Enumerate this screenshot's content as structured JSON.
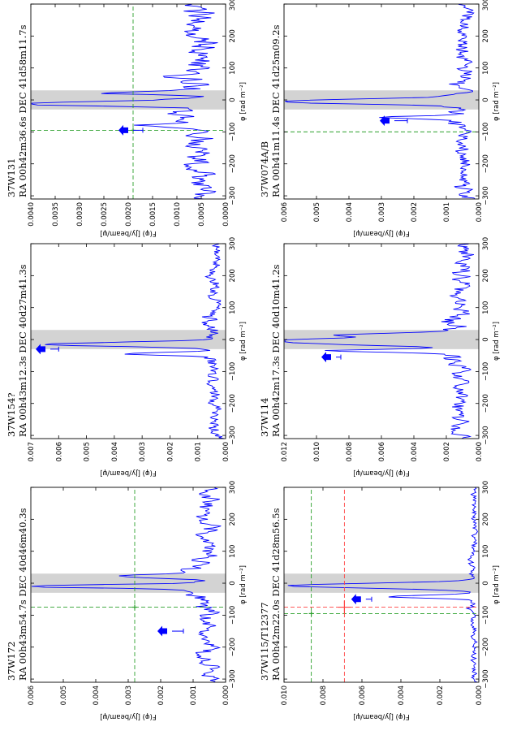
{
  "page": {
    "orientation": "rotated 90 degrees counter-clockwise",
    "layout": "3 columns x 2 rows of Faraday depth spectra"
  },
  "colors": {
    "spectrum": "#0000ff",
    "marker": "#0000ff",
    "green_line": "#2ca02c",
    "red_line": "#ff4444",
    "shade": "#d3d3d3"
  },
  "chart_data": [
    {
      "id": "37W172",
      "type": "line",
      "title": "37W172",
      "subtitle": "RA  00h43m54.7s  DEC  40d46m40.3s",
      "xlabel": "φ  [rad m⁻²]",
      "ylabel": "F(φ)  [Jy/beam/ψ]",
      "xlim": [
        -310,
        300
      ],
      "ylim": [
        0,
        0.006
      ],
      "xticks": [
        "−300",
        "−200",
        "−100",
        "0",
        "100",
        "200",
        "300"
      ],
      "yticks": [
        "0.000",
        "0.001",
        "0.002",
        "0.003",
        "0.004",
        "0.005",
        "0.006"
      ],
      "shaded_x": [
        -30,
        30
      ],
      "peak_phi": -10,
      "peak_val": 0.0055,
      "peak_width": 7,
      "secondary": [
        {
          "phi": 22,
          "val": 0.0022,
          "w": 8
        }
      ],
      "noise": 0.0011,
      "seed": 3,
      "marker": {
        "phi": -150,
        "val": 0.00165,
        "err_lo": 0.0013
      },
      "green_v": -75,
      "green_h": 0.0028,
      "green_pt": {
        "phi": -75,
        "val": 0.0028
      },
      "red_v": null,
      "red_h": null
    },
    {
      "id": "37W154",
      "type": "line",
      "title": "37W154?",
      "subtitle": "RA  00h43m12.3s  DEC  40d27m41.3s",
      "xlabel": "φ  [rad m⁻²]",
      "ylabel": "F(φ)  [Jy/beam/ψ]",
      "xlim": [
        -310,
        300
      ],
      "ylim": [
        0,
        0.007
      ],
      "xticks": [
        "−300",
        "−200",
        "−100",
        "0",
        "100",
        "200",
        "300"
      ],
      "yticks": [
        "0.000",
        "0.001",
        "0.002",
        "0.003",
        "0.004",
        "0.005",
        "0.006",
        "0.007"
      ],
      "shaded_x": [
        -30,
        30
      ],
      "peak_phi": -15,
      "peak_val": 0.0058,
      "peak_width": 9,
      "secondary": [
        {
          "phi": -45,
          "val": 0.0028,
          "w": 6
        }
      ],
      "noise": 0.0008,
      "seed": 7,
      "marker": {
        "phi": -30,
        "val": 0.0063,
        "err_lo": 0.006
      },
      "green_v": null,
      "green_h": null,
      "green_pt": null,
      "red_v": null,
      "red_h": null
    },
    {
      "id": "37W131",
      "type": "line",
      "title": "37W131",
      "subtitle": "RA  00h42m36.6s  DEC  41d58m11.7s",
      "xlabel": "φ  [rad m⁻²]",
      "ylabel": "F(φ)  [Jy/beam/ψ]",
      "xlim": [
        -310,
        300
      ],
      "ylim": [
        0,
        0.004
      ],
      "xticks": [
        "−300",
        "−200",
        "−100",
        "0",
        "100",
        "200",
        "300"
      ],
      "yticks": [
        "0.0000",
        "0.0005",
        "0.0010",
        "0.0015",
        "0.0020",
        "0.0025",
        "0.0030",
        "0.0035",
        "0.0040"
      ],
      "shaded_x": [
        -30,
        30
      ],
      "peak_phi": -12,
      "peak_val": 0.0037,
      "peak_width": 8,
      "secondary": [
        {
          "phi": 22,
          "val": 0.0017,
          "w": 7
        },
        {
          "phi": -80,
          "val": 0.0013,
          "w": 6
        }
      ],
      "noise": 0.0011,
      "seed": 11,
      "marker": {
        "phi": -95,
        "val": 0.0019,
        "err_lo": 0.0017
      },
      "green_v": -95,
      "green_h": 0.0019,
      "green_pt": {
        "phi": -95,
        "val": 0.0019
      },
      "red_v": null,
      "red_h": null
    },
    {
      "id": "37W115",
      "type": "line",
      "title": "37W115/T12377",
      "subtitle": "RA  00h42m22.0s  DEC  41d28m56.5s",
      "xlabel": "φ  [rad m⁻²]",
      "ylabel": "F(φ)  [Jy/beam/ψ]",
      "xlim": [
        -310,
        300
      ],
      "ylim": [
        0,
        0.01
      ],
      "xticks": [
        "−300",
        "−200",
        "−100",
        "0",
        "100",
        "200",
        "300"
      ],
      "yticks": [
        "0.000",
        "0.002",
        "0.004",
        "0.006",
        "0.008",
        "0.010"
      ],
      "shaded_x": [
        -30,
        30
      ],
      "peak_phi": -8,
      "peak_val": 0.0095,
      "peak_width": 10,
      "secondary": [
        {
          "phi": -42,
          "val": 0.0045,
          "w": 6
        }
      ],
      "noise": 0.0005,
      "seed": 19,
      "marker": {
        "phi": -50,
        "val": 0.0058,
        "err_lo": 0.0055
      },
      "green_v": -95,
      "green_h": 0.0086,
      "green_pt": {
        "phi": -95,
        "val": 0.0086
      },
      "red_v": -75,
      "red_h": 0.0069,
      "red_pt": {
        "phi": -75,
        "val": 0.0069
      }
    },
    {
      "id": "37W114",
      "type": "line",
      "title": "37W114",
      "subtitle": "RA  00h42m17.3s  DEC  40d10m41.2s",
      "xlabel": "φ  [rad m⁻²]",
      "ylabel": "F(φ)  [Jy/beam/ψ]",
      "xlim": [
        -310,
        300
      ],
      "ylim": [
        0,
        0.012
      ],
      "xticks": [
        "−300",
        "−200",
        "−100",
        "0",
        "100",
        "200",
        "300"
      ],
      "yticks": [
        "0.000",
        "0.002",
        "0.004",
        "0.006",
        "0.008",
        "0.010",
        "0.012"
      ],
      "shaded_x": [
        -30,
        30
      ],
      "peak_phi": -5,
      "peak_val": 0.0112,
      "peak_width": 14,
      "secondary": [
        {
          "phi": -35,
          "val": 0.0075,
          "w": 6
        },
        {
          "phi": 15,
          "val": 0.006,
          "w": 6
        }
      ],
      "noise": 0.0022,
      "seed": 23,
      "marker": {
        "phi": -55,
        "val": 0.0088,
        "err_lo": 0.0085
      },
      "green_v": null,
      "green_h": null,
      "green_pt": null,
      "red_v": null,
      "red_h": null
    },
    {
      "id": "37W074",
      "type": "line",
      "title": "37W074A/B",
      "subtitle": "RA  00h41m11.4s  DEC  41d25m09.2s",
      "xlabel": "φ  [rad m⁻²]",
      "ylabel": "F(φ)  [Jy/beam/ψ]",
      "xlim": [
        -310,
        300
      ],
      "ylim": [
        0,
        0.006
      ],
      "xticks": [
        "−300",
        "−200",
        "−100",
        "0",
        "100",
        "200",
        "300"
      ],
      "yticks": [
        "0.000",
        "0.001",
        "0.002",
        "0.003",
        "0.004",
        "0.005",
        "0.006"
      ],
      "shaded_x": [
        -30,
        30
      ],
      "peak_phi": -5,
      "peak_val": 0.0055,
      "peak_width": 10,
      "secondary": [
        {
          "phi": -55,
          "val": 0.0022,
          "w": 6
        }
      ],
      "noise": 0.0009,
      "seed": 31,
      "marker": {
        "phi": -65,
        "val": 0.0026,
        "err_lo": 0.0022
      },
      "green_v": -100,
      "green_h": null,
      "green_pt": null,
      "red_v": null,
      "red_h": null
    }
  ]
}
